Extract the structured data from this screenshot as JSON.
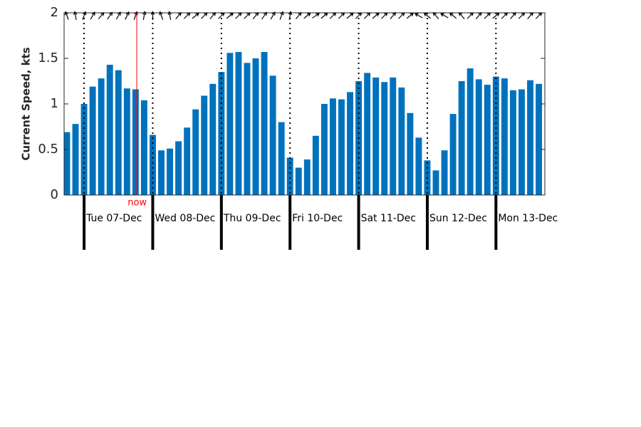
{
  "chart_data": {
    "type": "bar",
    "y_label": "Current Speed, kts",
    "color": "#0072bd",
    "x": [
      0,
      1,
      2,
      3,
      4,
      5,
      6,
      7,
      8,
      9,
      10,
      11,
      12,
      13,
      14,
      15,
      16,
      17,
      18,
      19,
      20,
      21,
      22,
      23,
      24,
      25,
      26,
      27,
      28,
      29,
      30,
      31,
      32,
      33,
      34,
      35,
      36,
      37,
      38,
      39,
      40,
      41,
      42,
      43,
      44,
      45,
      46,
      47,
      48,
      49,
      50,
      51,
      52,
      53,
      54,
      55
    ],
    "values": [
      0.69,
      0.78,
      1.0,
      1.19,
      1.28,
      1.43,
      1.37,
      1.17,
      1.16,
      1.04,
      0.66,
      0.49,
      0.51,
      0.59,
      0.74,
      0.94,
      1.09,
      1.22,
      1.35,
      1.56,
      1.57,
      1.45,
      1.5,
      1.57,
      1.31,
      0.8,
      0.41,
      0.3,
      0.39,
      0.65,
      1.0,
      1.06,
      1.05,
      1.13,
      1.25,
      1.34,
      1.29,
      1.24,
      1.29,
      1.18,
      0.9,
      0.63,
      0.38,
      0.27,
      0.49,
      0.89,
      1.25,
      1.39,
      1.27,
      1.21,
      1.3,
      1.28,
      1.15,
      1.16,
      1.26,
      1.22
    ],
    "directions": [
      340,
      350,
      20,
      30,
      40,
      35,
      30,
      25,
      20,
      10,
      0,
      340,
      350,
      40,
      45,
      50,
      45,
      40,
      45,
      50,
      45,
      45,
      40,
      35,
      30,
      20,
      10,
      40,
      50,
      55,
      50,
      45,
      45,
      50,
      45,
      45,
      50,
      45,
      40,
      45,
      50,
      300,
      310,
      320,
      300,
      310,
      320,
      45,
      40,
      45,
      50,
      45,
      40,
      45,
      40,
      45
    ],
    "xlim": [
      -0.33,
      55.7
    ],
    "xticks": [
      {
        "value": 2,
        "label": "Tue 07-Dec"
      },
      {
        "value": 10,
        "label": "Wed 08-Dec"
      },
      {
        "value": 18,
        "label": "Thu 09-Dec"
      },
      {
        "value": 26,
        "label": "Fri 10-Dec"
      },
      {
        "value": 34,
        "label": "Sat 11-Dec"
      },
      {
        "value": 42,
        "label": "Sun 12-Dec"
      },
      {
        "value": 50,
        "label": "Mon 13-Dec"
      }
    ],
    "ylim": [
      0,
      2
    ],
    "yticks": [
      0,
      0.5,
      1,
      1.5,
      2
    ],
    "now": {
      "x": 8.14,
      "label": "now",
      "color": "#ff0000"
    }
  }
}
